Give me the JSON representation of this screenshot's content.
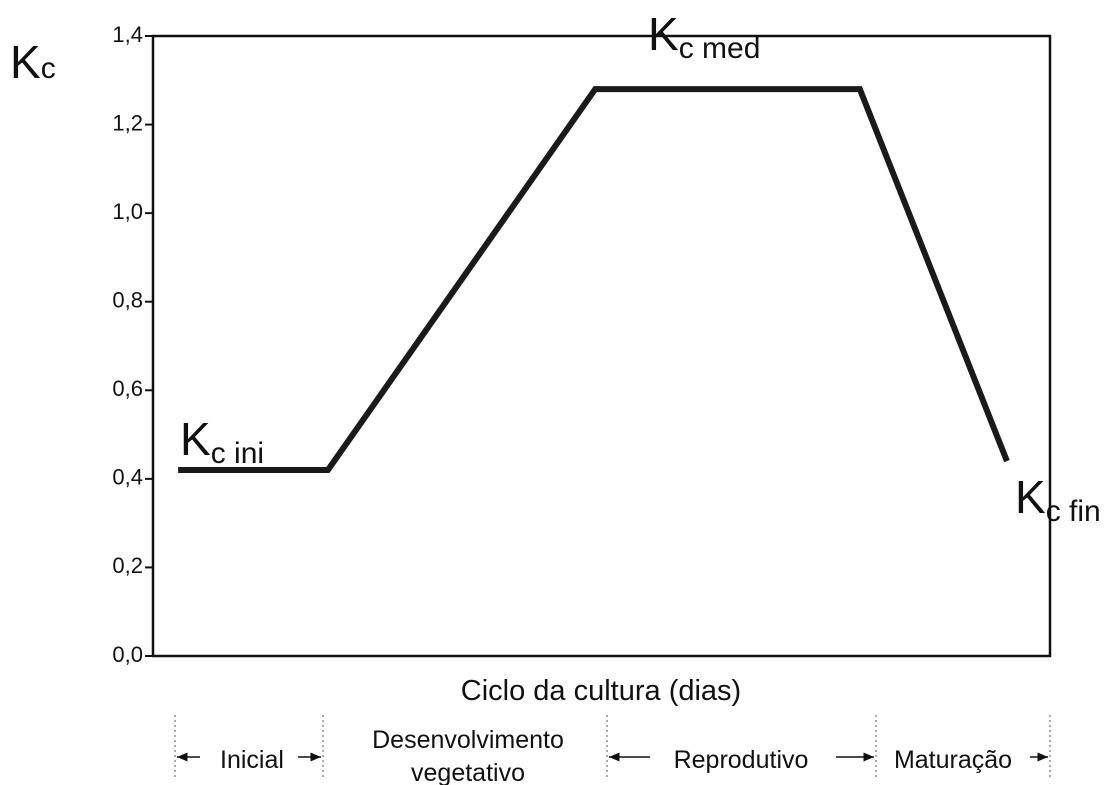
{
  "chart_data": {
    "type": "line",
    "y_label": {
      "main": "K",
      "sub": "c"
    },
    "x_label": "Ciclo da cultura (dias)",
    "x": [
      2.8,
      19.5,
      49.3,
      78.8,
      95.2
    ],
    "values": [
      0.42,
      0.42,
      1.28,
      1.28,
      0.44
    ],
    "color": "#1a1a1a",
    "xlim": [
      0,
      100
    ],
    "ylim": [
      0,
      1.4
    ],
    "yticks": [
      {
        "value": 0,
        "label": "0,0"
      },
      {
        "value": 0.2,
        "label": "0,2"
      },
      {
        "value": 0.4,
        "label": "0,4"
      },
      {
        "value": 0.6,
        "label": "0,6"
      },
      {
        "value": 0.8,
        "label": "0,8"
      },
      {
        "value": 1.0,
        "label": "1,0"
      },
      {
        "value": 1.2,
        "label": "1,2"
      },
      {
        "value": 1.4,
        "label": "1,4"
      }
    ],
    "annotations": [
      {
        "main": "K",
        "sub": "c ini"
      },
      {
        "main": "K",
        "sub": "c med"
      },
      {
        "main": "K",
        "sub": "c fin"
      }
    ],
    "stages": [
      [
        "Inicial"
      ],
      [
        "Desenvolvimento",
        "vegetativo"
      ],
      [
        "Reprodutivo"
      ],
      [
        "Maturação"
      ]
    ]
  }
}
